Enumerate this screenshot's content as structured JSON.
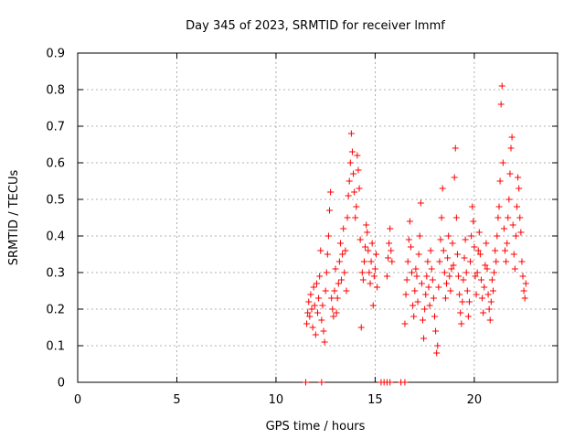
{
  "chart_data": {
    "type": "scatter",
    "title": "Day 345 of 2023, SRMTID for receiver lmmf",
    "xlabel": "GPS time / hours",
    "ylabel": "SRMTID / TECUs",
    "xlim": [
      0,
      24.2
    ],
    "ylim": [
      0,
      0.9
    ],
    "xticks": [
      0,
      5,
      10,
      15,
      20
    ],
    "xtick_labels": [
      "0",
      "5",
      "10",
      "15",
      "20"
    ],
    "yticks": [
      0,
      0.1,
      0.2,
      0.3,
      0.4,
      0.5,
      0.6,
      0.7,
      0.8,
      0.9
    ],
    "ytick_labels": [
      "0",
      "0.1",
      "0.2",
      "0.3",
      "0.4",
      "0.5",
      "0.6",
      "0.7",
      "0.8",
      "0.9"
    ],
    "grid": true,
    "marker": "+",
    "color": "#ff0000",
    "series": [
      {
        "name": "SRMTID",
        "points": [
          [
            11.55,
            0.16
          ],
          [
            11.6,
            0.19
          ],
          [
            11.65,
            0.22
          ],
          [
            11.7,
            0.18
          ],
          [
            11.75,
            0.24
          ],
          [
            11.8,
            0.2
          ],
          [
            11.85,
            0.15
          ],
          [
            11.9,
            0.26
          ],
          [
            11.95,
            0.21
          ],
          [
            12.0,
            0.13
          ],
          [
            12.05,
            0.27
          ],
          [
            12.1,
            0.19
          ],
          [
            12.15,
            0.23
          ],
          [
            12.2,
            0.29
          ],
          [
            12.25,
            0.36
          ],
          [
            12.3,
            0.17
          ],
          [
            12.35,
            0.21
          ],
          [
            12.4,
            0.14
          ],
          [
            12.45,
            0.11
          ],
          [
            12.5,
            0.25
          ],
          [
            12.55,
            0.3
          ],
          [
            12.6,
            0.35
          ],
          [
            12.65,
            0.4
          ],
          [
            12.7,
            0.47
          ],
          [
            12.75,
            0.52
          ],
          [
            12.8,
            0.23
          ],
          [
            12.85,
            0.2
          ],
          [
            12.9,
            0.18
          ],
          [
            12.95,
            0.25
          ],
          [
            13.0,
            0.31
          ],
          [
            13.05,
            0.19
          ],
          [
            13.1,
            0.23
          ],
          [
            13.15,
            0.27
          ],
          [
            13.2,
            0.33
          ],
          [
            13.25,
            0.38
          ],
          [
            13.3,
            0.28
          ],
          [
            13.35,
            0.35
          ],
          [
            13.4,
            0.42
          ],
          [
            13.45,
            0.3
          ],
          [
            13.5,
            0.36
          ],
          [
            13.55,
            0.25
          ],
          [
            13.6,
            0.45
          ],
          [
            13.65,
            0.51
          ],
          [
            13.7,
            0.55
          ],
          [
            13.75,
            0.6
          ],
          [
            13.8,
            0.68
          ],
          [
            13.85,
            0.63
          ],
          [
            13.9,
            0.57
          ],
          [
            13.95,
            0.52
          ],
          [
            14.0,
            0.45
          ],
          [
            14.05,
            0.48
          ],
          [
            14.1,
            0.62
          ],
          [
            14.15,
            0.58
          ],
          [
            14.2,
            0.53
          ],
          [
            14.25,
            0.39
          ],
          [
            14.3,
            0.15
          ],
          [
            14.35,
            0.3
          ],
          [
            14.4,
            0.28
          ],
          [
            14.45,
            0.33
          ],
          [
            14.5,
            0.37
          ],
          [
            14.55,
            0.43
          ],
          [
            14.6,
            0.41
          ],
          [
            14.65,
            0.36
          ],
          [
            14.7,
            0.3
          ],
          [
            14.75,
            0.27
          ],
          [
            14.8,
            0.33
          ],
          [
            14.85,
            0.38
          ],
          [
            14.9,
            0.21
          ],
          [
            14.95,
            0.29
          ],
          [
            15.0,
            0.31
          ],
          [
            15.05,
            0.35
          ],
          [
            15.1,
            0.26
          ],
          [
            15.6,
            0.29
          ],
          [
            15.65,
            0.34
          ],
          [
            15.7,
            0.38
          ],
          [
            15.75,
            0.42
          ],
          [
            15.8,
            0.36
          ],
          [
            15.85,
            0.33
          ],
          [
            16.5,
            0.16
          ],
          [
            16.55,
            0.24
          ],
          [
            16.6,
            0.28
          ],
          [
            16.65,
            0.33
          ],
          [
            16.7,
            0.39
          ],
          [
            16.75,
            0.44
          ],
          [
            16.8,
            0.37
          ],
          [
            16.85,
            0.3
          ],
          [
            16.9,
            0.21
          ],
          [
            16.95,
            0.18
          ],
          [
            17.0,
            0.25
          ],
          [
            17.05,
            0.31
          ],
          [
            17.1,
            0.29
          ],
          [
            17.15,
            0.22
          ],
          [
            17.2,
            0.35
          ],
          [
            17.25,
            0.4
          ],
          [
            17.3,
            0.49
          ],
          [
            17.35,
            0.27
          ],
          [
            17.4,
            0.17
          ],
          [
            17.45,
            0.12
          ],
          [
            17.5,
            0.2
          ],
          [
            17.55,
            0.24
          ],
          [
            17.6,
            0.29
          ],
          [
            17.65,
            0.33
          ],
          [
            17.7,
            0.26
          ],
          [
            17.75,
            0.21
          ],
          [
            17.8,
            0.36
          ],
          [
            17.85,
            0.31
          ],
          [
            17.9,
            0.28
          ],
          [
            17.95,
            0.23
          ],
          [
            18.0,
            0.18
          ],
          [
            18.05,
            0.14
          ],
          [
            18.1,
            0.08
          ],
          [
            18.15,
            0.1
          ],
          [
            18.2,
            0.26
          ],
          [
            18.25,
            0.33
          ],
          [
            18.3,
            0.39
          ],
          [
            18.35,
            0.45
          ],
          [
            18.4,
            0.53
          ],
          [
            18.45,
            0.36
          ],
          [
            18.5,
            0.3
          ],
          [
            18.55,
            0.23
          ],
          [
            18.6,
            0.27
          ],
          [
            18.65,
            0.34
          ],
          [
            18.7,
            0.4
          ],
          [
            18.75,
            0.29
          ],
          [
            18.8,
            0.25
          ],
          [
            18.85,
            0.31
          ],
          [
            18.9,
            0.38
          ],
          [
            18.95,
            0.32
          ],
          [
            19.0,
            0.56
          ],
          [
            19.05,
            0.64
          ],
          [
            19.1,
            0.45
          ],
          [
            19.15,
            0.35
          ],
          [
            19.2,
            0.29
          ],
          [
            19.25,
            0.24
          ],
          [
            19.3,
            0.19
          ],
          [
            19.35,
            0.16
          ],
          [
            19.4,
            0.22
          ],
          [
            19.45,
            0.28
          ],
          [
            19.5,
            0.34
          ],
          [
            19.55,
            0.39
          ],
          [
            19.6,
            0.3
          ],
          [
            19.65,
            0.25
          ],
          [
            19.7,
            0.18
          ],
          [
            19.75,
            0.22
          ],
          [
            19.8,
            0.33
          ],
          [
            19.85,
            0.4
          ],
          [
            19.9,
            0.48
          ],
          [
            19.95,
            0.44
          ],
          [
            20.0,
            0.37
          ],
          [
            20.05,
            0.29
          ],
          [
            20.1,
            0.24
          ],
          [
            20.15,
            0.3
          ],
          [
            20.2,
            0.36
          ],
          [
            20.25,
            0.41
          ],
          [
            20.3,
            0.35
          ],
          [
            20.35,
            0.28
          ],
          [
            20.4,
            0.23
          ],
          [
            20.45,
            0.19
          ],
          [
            20.5,
            0.26
          ],
          [
            20.55,
            0.32
          ],
          [
            20.6,
            0.38
          ],
          [
            20.65,
            0.31
          ],
          [
            20.7,
            0.24
          ],
          [
            20.75,
            0.2
          ],
          [
            20.8,
            0.17
          ],
          [
            20.85,
            0.22
          ],
          [
            20.9,
            0.28
          ],
          [
            20.95,
            0.25
          ],
          [
            21.0,
            0.3
          ],
          [
            21.05,
            0.36
          ],
          [
            21.1,
            0.33
          ],
          [
            21.15,
            0.4
          ],
          [
            21.2,
            0.45
          ],
          [
            21.25,
            0.48
          ],
          [
            21.3,
            0.55
          ],
          [
            21.35,
            0.76
          ],
          [
            21.4,
            0.81
          ],
          [
            21.45,
            0.6
          ],
          [
            21.5,
            0.42
          ],
          [
            21.55,
            0.36
          ],
          [
            21.6,
            0.33
          ],
          [
            21.65,
            0.38
          ],
          [
            21.7,
            0.45
          ],
          [
            21.75,
            0.5
          ],
          [
            21.8,
            0.57
          ],
          [
            21.85,
            0.64
          ],
          [
            21.9,
            0.67
          ],
          [
            21.95,
            0.43
          ],
          [
            22.0,
            0.35
          ],
          [
            22.05,
            0.31
          ],
          [
            22.1,
            0.4
          ],
          [
            22.15,
            0.48
          ],
          [
            22.2,
            0.56
          ],
          [
            22.25,
            0.53
          ],
          [
            22.3,
            0.45
          ],
          [
            22.35,
            0.41
          ],
          [
            22.4,
            0.33
          ],
          [
            22.45,
            0.29
          ],
          [
            22.5,
            0.25
          ],
          [
            22.55,
            0.23
          ],
          [
            22.6,
            0.27
          ],
          [
            11.5,
            0.0
          ],
          [
            12.3,
            0.0
          ],
          [
            15.3,
            0.0
          ],
          [
            15.45,
            0.0
          ],
          [
            15.6,
            0.0
          ],
          [
            15.75,
            0.0
          ],
          [
            16.3,
            0.0
          ],
          [
            16.5,
            0.0
          ]
        ]
      }
    ]
  }
}
